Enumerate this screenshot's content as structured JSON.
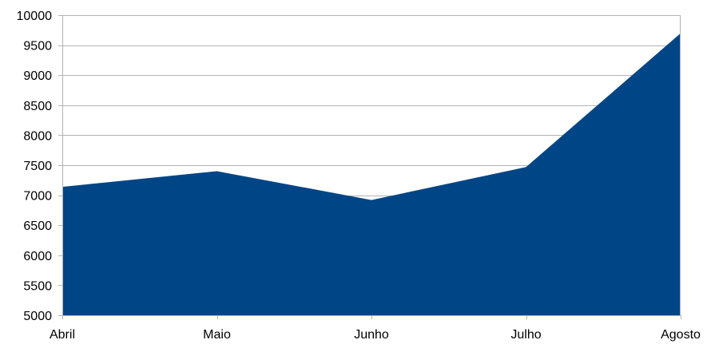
{
  "chart_data": {
    "type": "area",
    "categories": [
      "Abril",
      "Maio",
      "Junho",
      "Julho",
      "Agosto"
    ],
    "series": [
      {
        "values": [
          7140,
          7400,
          6920,
          7470,
          9700
        ]
      }
    ],
    "ylim": [
      5000,
      10000
    ],
    "yticks": [
      "5000",
      "5500",
      "6000",
      "6500",
      "7000",
      "7500",
      "8000",
      "8500",
      "9000",
      "9500",
      "10000"
    ],
    "title": "",
    "xlabel": "",
    "ylabel": "",
    "grid": "horizontal",
    "legend": "none",
    "colors": {
      "area": "#004586",
      "grid": "#b3b3b3",
      "axis": "#b3b3b3",
      "text": "#000000"
    }
  }
}
